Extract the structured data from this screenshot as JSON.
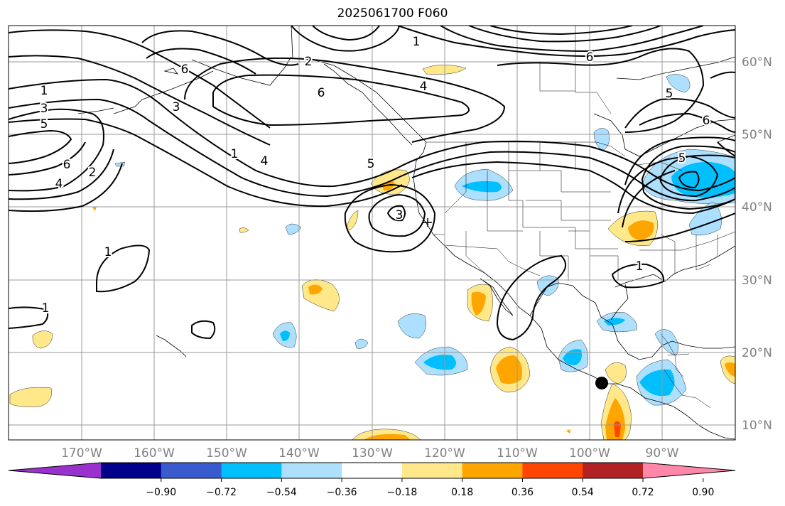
{
  "title": "2025061700 F060",
  "map": {
    "lon_range": [
      -180,
      -80
    ],
    "lat_range": [
      8,
      65
    ],
    "lon_ticks": [
      "170°W",
      "160°W",
      "150°W",
      "140°W",
      "130°W",
      "120°W",
      "110°W",
      "100°W",
      "90°W"
    ],
    "lat_ticks": [
      "10°N",
      "20°N",
      "30°N",
      "40°N",
      "50°N",
      "60°N"
    ],
    "tick_color": "#808080",
    "grid": true
  },
  "contour_labels": [
    "1",
    "2",
    "3",
    "4",
    "5",
    "6",
    "1",
    "2",
    "3",
    "4",
    "5",
    "6",
    "6",
    "4",
    "5",
    "6",
    "1",
    "1",
    "1",
    "3",
    "5",
    "6",
    "1"
  ],
  "colorbar": {
    "colors": [
      "#9932CC",
      "#00008B",
      "#3A5BCF",
      "#00BFFF",
      "#ADDFFF",
      "#FFFFFF",
      "#FFE88A",
      "#FFA500",
      "#FF4500",
      "#B22222",
      "#FF88AA"
    ],
    "labels": [
      "−0.90",
      "−0.72",
      "−0.54",
      "−0.36",
      "−0.18",
      "0.18",
      "0.36",
      "0.54",
      "0.72",
      "0.90"
    ]
  },
  "marker": {
    "name": "storm-center",
    "lon": -98,
    "lat": 16
  }
}
